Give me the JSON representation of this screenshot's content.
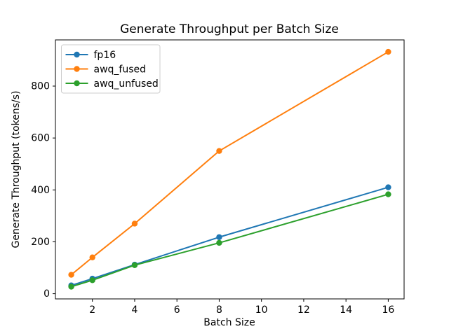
{
  "chart_data": {
    "type": "line",
    "title": "Generate Throughput per Batch Size",
    "xlabel": "Batch Size",
    "ylabel": "Generate Throughput (tokens/s)",
    "x": [
      1,
      2,
      4,
      8,
      16
    ],
    "series": [
      {
        "name": "fp16",
        "color": "#1f77b4",
        "values": [
          32,
          58,
          112,
          218,
          410
        ]
      },
      {
        "name": "awq_fused",
        "color": "#ff7f0e",
        "values": [
          73,
          140,
          270,
          550,
          932
        ]
      },
      {
        "name": "awq_unfused",
        "color": "#2ca02c",
        "values": [
          27,
          52,
          110,
          196,
          383
        ]
      }
    ],
    "xticks": [
      2,
      4,
      6,
      8,
      10,
      12,
      14,
      16
    ],
    "yticks": [
      0,
      200,
      400,
      600,
      800
    ],
    "xlim": [
      0.25,
      16.75
    ],
    "ylim": [
      -20,
      978
    ],
    "grid": false,
    "marker": "circle",
    "legend_position": "upper left",
    "colors": {
      "spine": "#000000",
      "text": "#000000",
      "legend_border": "#cccccc",
      "background": "#ffffff"
    }
  }
}
